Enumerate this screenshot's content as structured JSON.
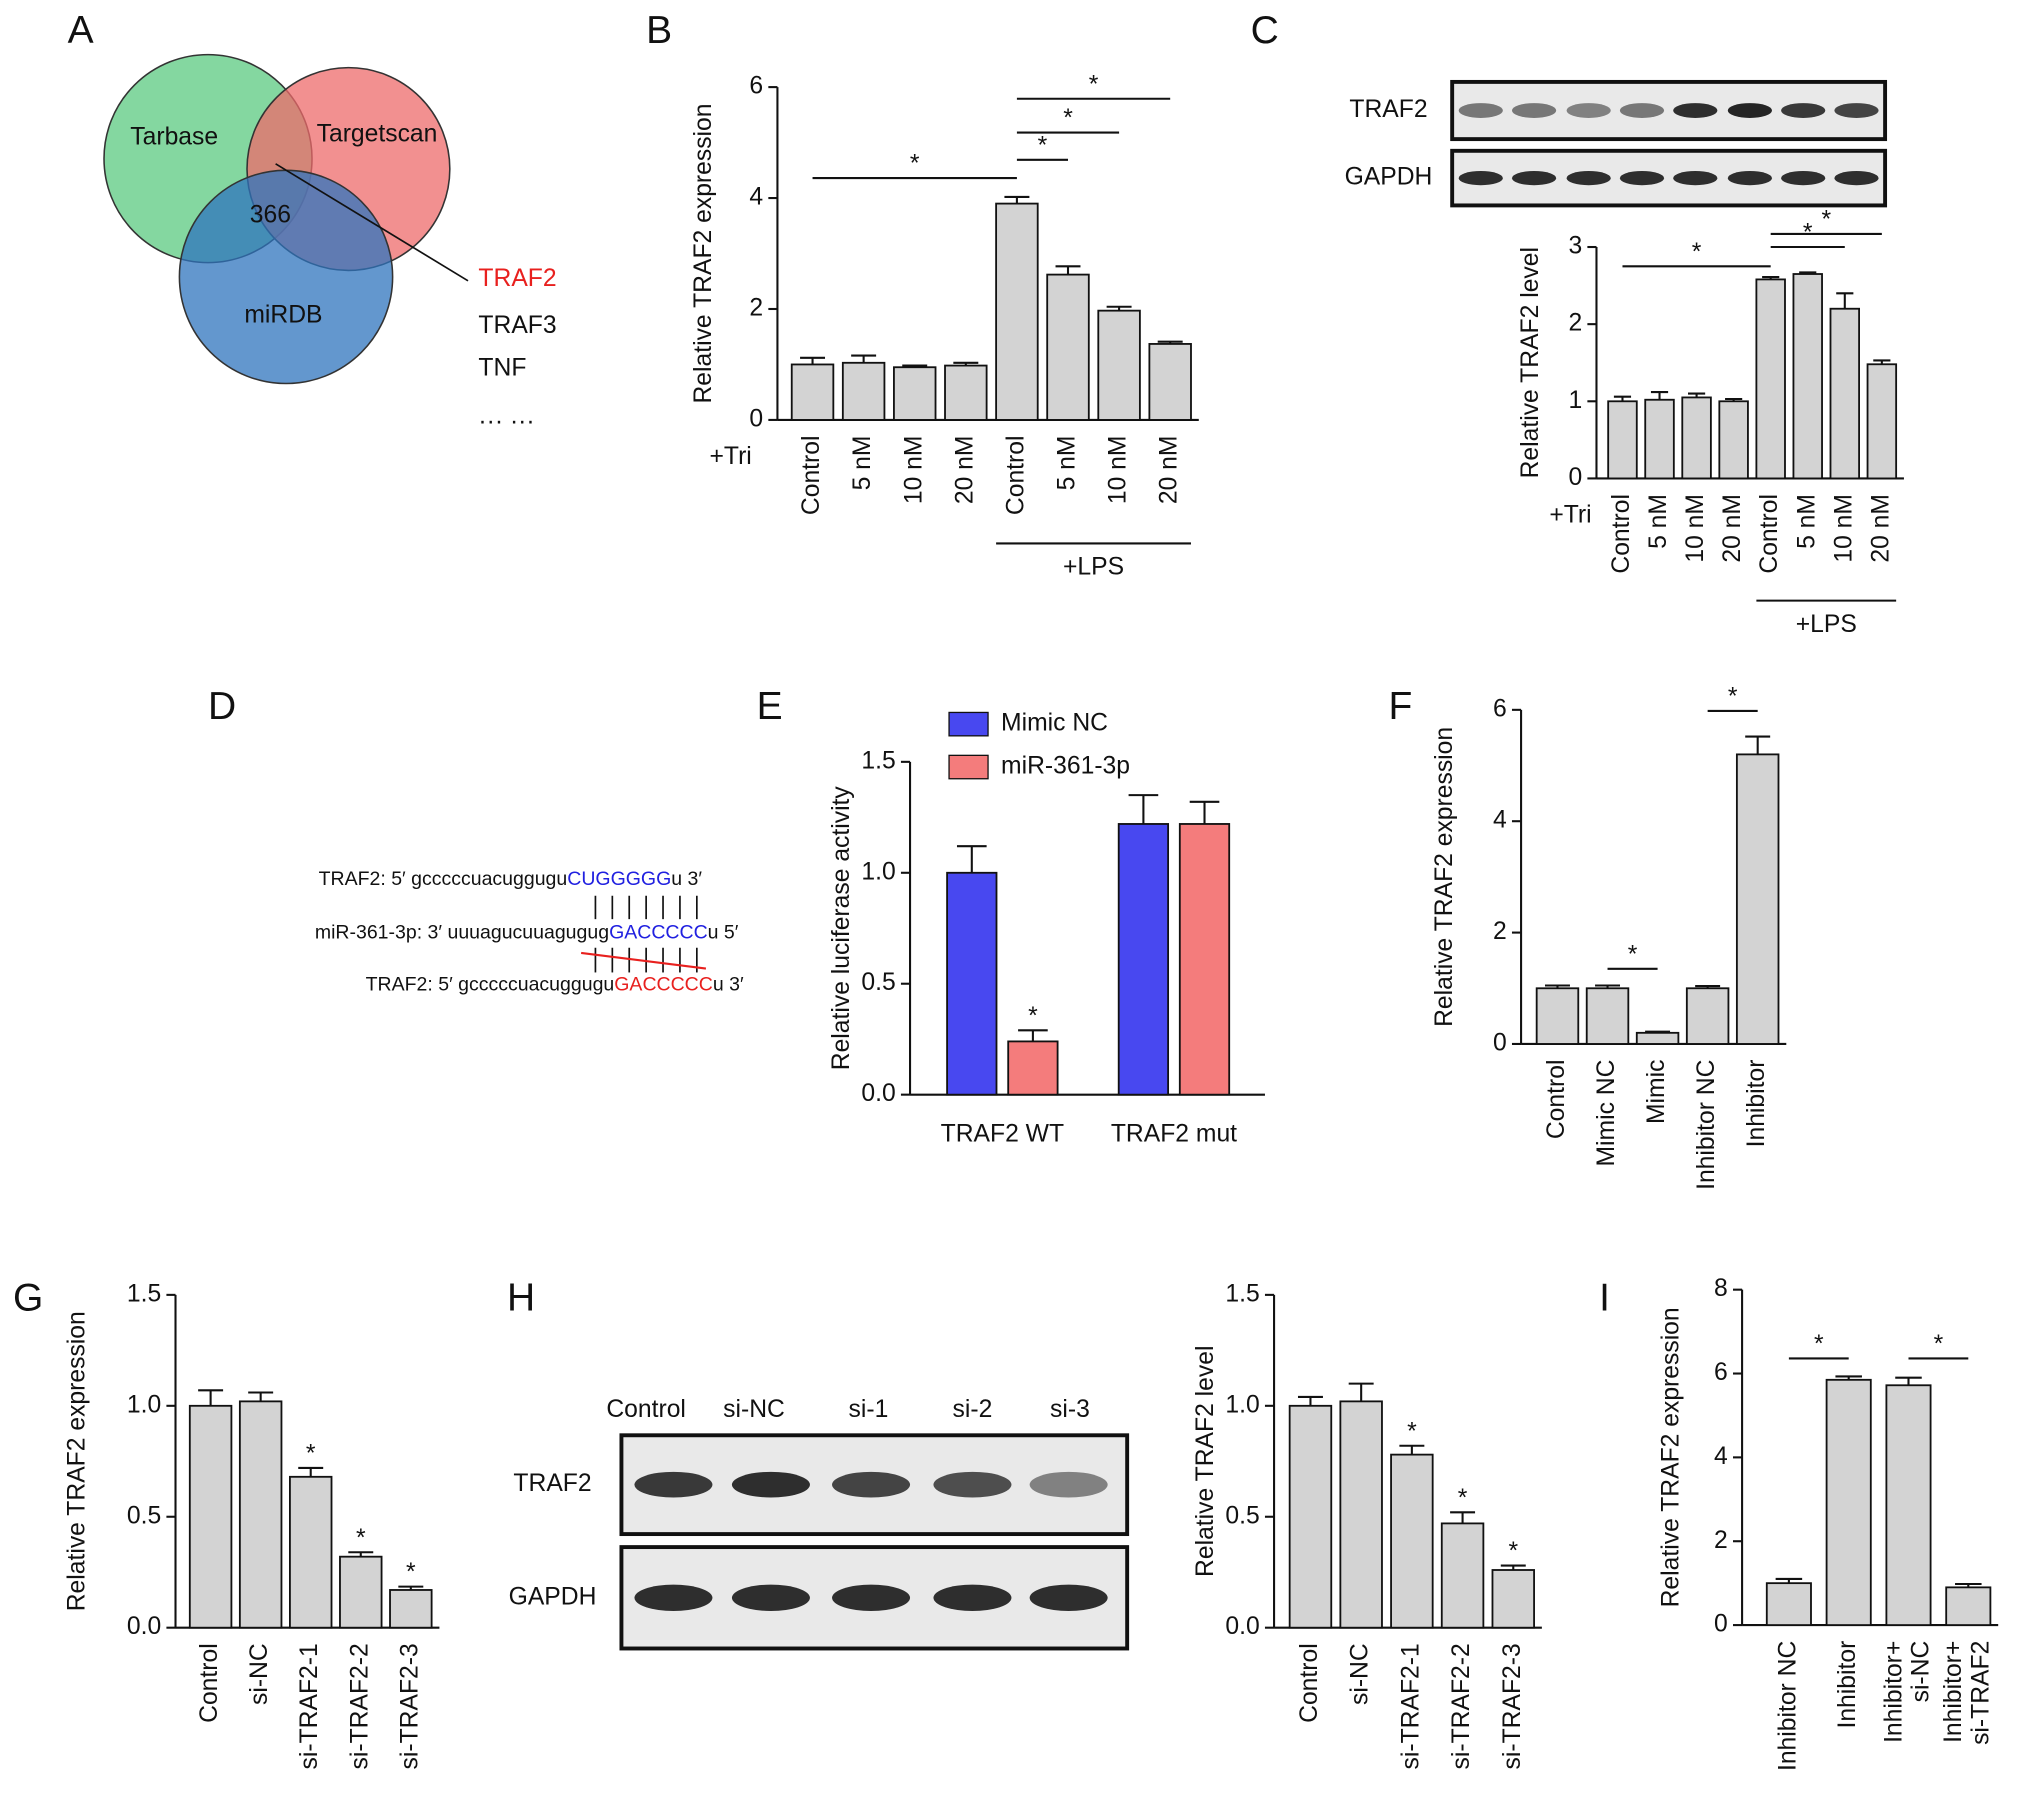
{
  "panel_labels": [
    "A",
    "B",
    "C",
    "D",
    "E",
    "F",
    "G",
    "H",
    "I"
  ],
  "venn": {
    "sets": [
      "Tarbase",
      "Targetscan",
      "miRDB"
    ],
    "overlap": 366,
    "genes": [
      "TRAF2",
      "TRAF3",
      "TNF",
      "··· ···"
    ]
  },
  "sequence": [
    {
      "prefix": "TRAF2: 5′ gcccccuacuggugu",
      "seed": "CUGGGGG",
      "suffix": "u 3′"
    },
    {
      "prefix": "miR-361-3p: 3′ uuuagucuuagugug",
      "seed": "GACCCCC",
      "suffix": "u 5′"
    },
    {
      "prefix": "TRAF2: 5′ gcccccuacuggugu",
      "seed": "GACCCCC",
      "suffix": "u 3′"
    }
  ],
  "chart_data": [
    {
      "type": "bar",
      "ylabel": "Relative TRAF2 expression",
      "categories": [
        "Control",
        "5 nM",
        "10 nM",
        "20 nM",
        "Control",
        "5 nM",
        "10 nM",
        "20 nM"
      ],
      "values": [
        1.0,
        1.03,
        0.95,
        0.98,
        3.9,
        2.62,
        1.97,
        1.37
      ],
      "errors": [
        0.12,
        0.13,
        0.03,
        0.05,
        0.12,
        0.15,
        0.07,
        0.04
      ],
      "color": "#d3d3d3",
      "ylim": [
        0,
        6
      ],
      "yticks": [
        0,
        2,
        4,
        6
      ],
      "group_labels": [
        "+Tri",
        "+LPS"
      ],
      "significance": [
        {
          "pair": [
            0,
            4
          ],
          "label": "*"
        },
        {
          "pair": [
            4,
            5
          ],
          "label": "*"
        },
        {
          "pair": [
            4,
            6
          ],
          "label": "*"
        },
        {
          "pair": [
            4,
            7
          ],
          "label": "*"
        }
      ]
    },
    {
      "type": "bar",
      "ylabel": "Relative TRAF2 level",
      "blot": {
        "rows": [
          "TRAF2",
          "GAPDH"
        ]
      },
      "categories": [
        "Control",
        "5 nM",
        "10 nM",
        "20 nM",
        "Control",
        "5 nM",
        "10 nM",
        "20 nM"
      ],
      "values": [
        1.0,
        1.02,
        1.05,
        1.0,
        2.58,
        2.65,
        2.2,
        1.48
      ],
      "errors": [
        0.06,
        0.1,
        0.05,
        0.03,
        0.03,
        0.02,
        0.2,
        0.05
      ],
      "color": "#d3d3d3",
      "ylim": [
        0,
        3
      ],
      "yticks": [
        0,
        1,
        2,
        3
      ],
      "group_labels": [
        "+Tri",
        "+LPS"
      ],
      "significance": [
        {
          "pair": [
            0,
            4
          ],
          "label": "*"
        },
        {
          "pair": [
            4,
            6
          ],
          "label": "*"
        },
        {
          "pair": [
            4,
            7
          ],
          "label": "*"
        }
      ]
    },
    {
      "type": "grouped_bar",
      "ylabel": "Relative luciferase activity",
      "categories": [
        "TRAF2 WT",
        "TRAF2 mut"
      ],
      "series": [
        {
          "name": "Mimic NC",
          "color": "#4848f0",
          "values": [
            1.0,
            1.22
          ],
          "errors": [
            0.12,
            0.13
          ]
        },
        {
          "name": "miR-361-3p",
          "color": "#f47c7c",
          "values": [
            0.24,
            1.22
          ],
          "errors": [
            0.05,
            0.1
          ]
        }
      ],
      "ylim": [
        0,
        1.5
      ],
      "yticks": [
        {
          "value": 0,
          "label": "0.0"
        },
        0.5,
        {
          "value": 1,
          "label": "1.0"
        },
        1.5
      ],
      "stars": [
        {
          "series": 1,
          "index": 0,
          "label": "*"
        }
      ]
    },
    {
      "type": "bar",
      "ylabel": "Relative TRAF2 expression",
      "categories": [
        "Control",
        "Mimic NC",
        "Mimic",
        "Inhibitor NC",
        "Inhibitor"
      ],
      "values": [
        1.0,
        1.0,
        0.2,
        1.0,
        5.2
      ],
      "errors": [
        0.05,
        0.05,
        0.02,
        0.04,
        0.32
      ],
      "color": "#d3d3d3",
      "ylim": [
        0,
        6
      ],
      "yticks": [
        0,
        2,
        4,
        6
      ],
      "significance": [
        {
          "pair": [
            1,
            2
          ],
          "label": "*"
        },
        {
          "pair": [
            3,
            4
          ],
          "label": "*"
        }
      ]
    },
    {
      "type": "bar",
      "ylabel": "Relative TRAF2 expression",
      "categories": [
        "Control",
        "si-NC",
        "si-TRAF2-1",
        "si-TRAF2-2",
        "si-TRAF2-3"
      ],
      "values": [
        1.0,
        1.02,
        0.68,
        0.32,
        0.17
      ],
      "errors": [
        0.07,
        0.04,
        0.04,
        0.02,
        0.015
      ],
      "color": "#d3d3d3",
      "ylim": [
        0,
        1.5
      ],
      "yticks": [
        {
          "value": 0,
          "label": "0.0"
        },
        0.5,
        {
          "value": 1,
          "label": "1.0"
        },
        1.5
      ],
      "stars": [
        {
          "index": 2,
          "label": "*"
        },
        {
          "index": 3,
          "label": "*"
        },
        {
          "index": 4,
          "label": "*"
        }
      ]
    },
    {
      "type": "bar",
      "ylabel": "Relative TRAF2 level",
      "blot": {
        "lanes": [
          "Control",
          "si-NC",
          "si-1",
          "si-2",
          "si-3"
        ],
        "rows": [
          "TRAF2",
          "GAPDH"
        ]
      },
      "categories": [
        "Control",
        "si-NC",
        "si-TRAF2-1",
        "si-TRAF2-2",
        "si-TRAF2-3"
      ],
      "values": [
        1.0,
        1.02,
        0.78,
        0.47,
        0.26
      ],
      "errors": [
        0.04,
        0.08,
        0.04,
        0.05,
        0.02
      ],
      "color": "#d3d3d3",
      "ylim": [
        0,
        1.5
      ],
      "yticks": [
        {
          "value": 0,
          "label": "0.0"
        },
        0.5,
        {
          "value": 1,
          "label": "1.0"
        },
        1.5
      ],
      "stars": [
        {
          "index": 2,
          "label": "*"
        },
        {
          "index": 3,
          "label": "*"
        },
        {
          "index": 4,
          "label": "*"
        }
      ]
    },
    {
      "type": "bar",
      "ylabel": "Relative TRAF2 expression",
      "categories": [
        "Inhibitor NC",
        "Inhibitor",
        [
          "Inhibitor+",
          "si-NC"
        ],
        [
          "Inhibitor+",
          "si-TRAF2"
        ]
      ],
      "values": [
        1.0,
        5.85,
        5.72,
        0.9
      ],
      "errors": [
        0.1,
        0.08,
        0.18,
        0.08
      ],
      "color": "#d3d3d3",
      "ylim": [
        0,
        8
      ],
      "yticks": [
        0,
        2,
        4,
        6,
        8
      ],
      "significance": [
        {
          "pair": [
            0,
            1
          ],
          "label": "*"
        },
        {
          "pair": [
            2,
            3
          ],
          "label": "*"
        }
      ]
    }
  ]
}
